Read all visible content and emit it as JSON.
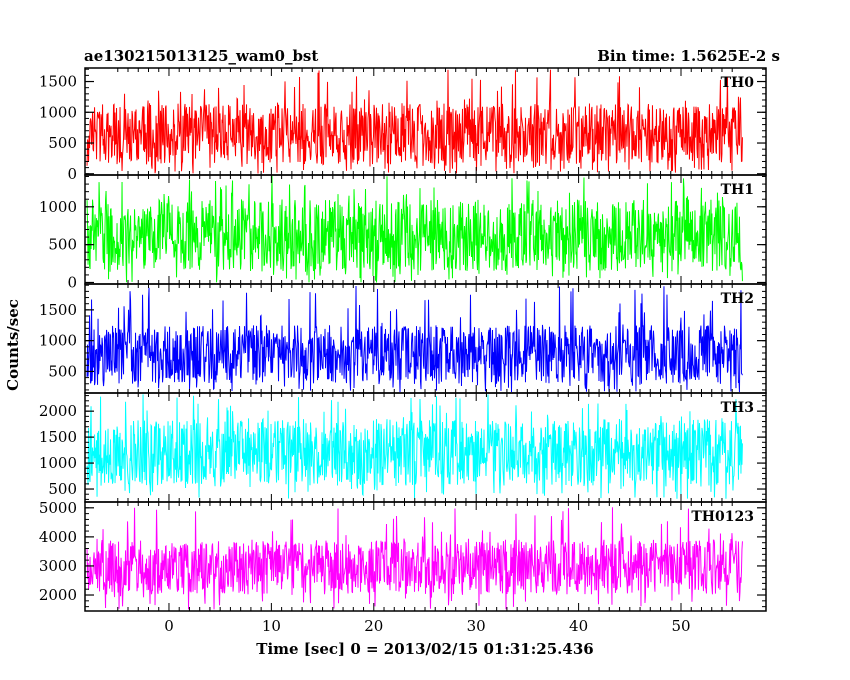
{
  "header": {
    "title": "ae130215013125_wam0_bst",
    "bin_time": "Bin time: 1.5625E-2 s"
  },
  "chart_data": {
    "type": "line",
    "title": "ae130215013125_wam0_bst",
    "subtitle": "Bin time: 1.5625E-2 s",
    "xlabel": "Time [sec] 0 = 2013/02/15 01:31:25.436",
    "ylabel": "Counts/sec",
    "xlim": [
      -8.2,
      58.3
    ],
    "x_data_range": [
      -8.0,
      56.0
    ],
    "x_ticks": [
      "0",
      "10",
      "20",
      "30",
      "40",
      "50"
    ],
    "grid": false,
    "panels": [
      {
        "label": "TH0",
        "color": "#ff0000",
        "ylim": [
          -20,
          1720
        ],
        "y_ticks": [
          "0",
          "500",
          "1000",
          "1500"
        ],
        "typical_range": [
          150,
          1150
        ],
        "peak_range": [
          0,
          1700
        ]
      },
      {
        "label": "TH1",
        "color": "#00ff00",
        "ylim": [
          -20,
          1420
        ],
        "y_ticks": [
          "0",
          "500",
          "1000"
        ],
        "typical_range": [
          150,
          1100
        ],
        "peak_range": [
          0,
          1420
        ]
      },
      {
        "label": "TH2",
        "color": "#0000ff",
        "ylim": [
          150,
          1920
        ],
        "y_ticks": [
          "500",
          "1000",
          "1500"
        ],
        "typical_range": [
          300,
          1250
        ],
        "peak_range": [
          150,
          1900
        ]
      },
      {
        "label": "TH3",
        "color": "#00ffff",
        "ylim": [
          250,
          2350
        ],
        "y_ticks": [
          "500",
          "1000",
          "1500",
          "2000"
        ],
        "typical_range": [
          550,
          1850
        ],
        "peak_range": [
          300,
          2350
        ]
      },
      {
        "label": "TH0123",
        "color": "#ff00ff",
        "ylim": [
          1450,
          5200
        ],
        "y_ticks": [
          "2000",
          "3000",
          "4000",
          "5000"
        ],
        "typical_range": [
          2000,
          3900
        ],
        "peak_range": [
          1500,
          5100
        ]
      }
    ]
  }
}
